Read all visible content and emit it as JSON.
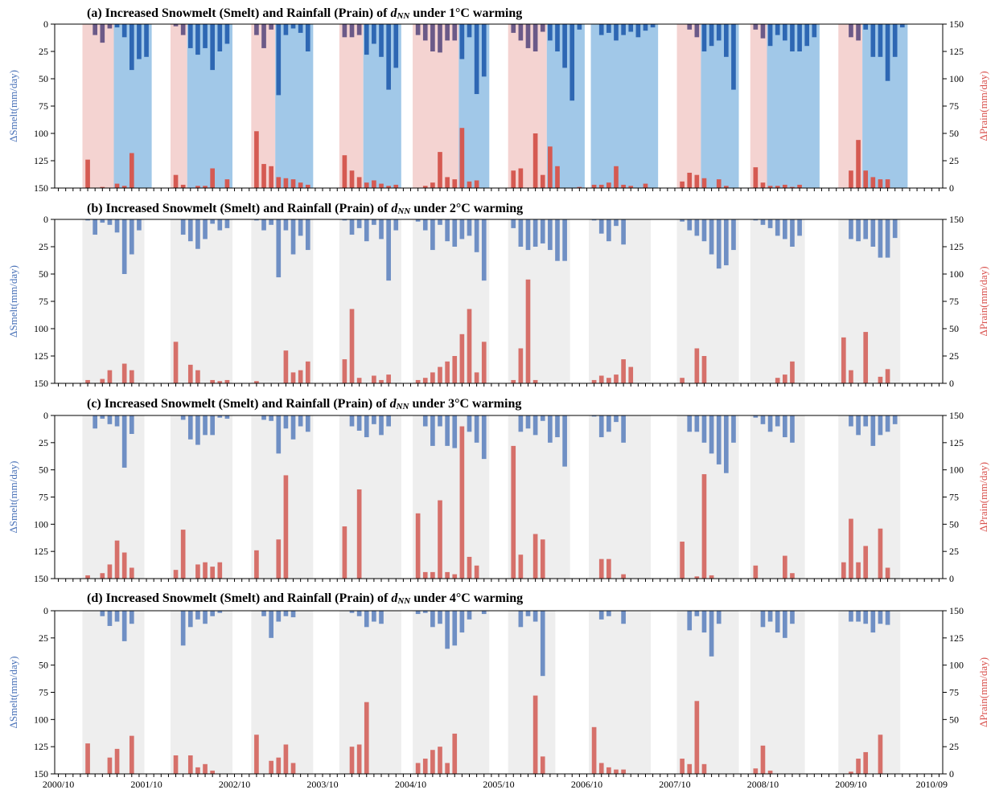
{
  "chart_data": {
    "type": "bar",
    "x_tick_labels": [
      "2000/10",
      "2001/10",
      "2002/10",
      "2003/10",
      "2004/10",
      "2005/10",
      "2006/10",
      "2007/10",
      "2008/10",
      "2009/10",
      "2010/09"
    ],
    "left_axis": {
      "label": "ΔSmelt(mm/day)",
      "ylim": [
        0,
        150
      ],
      "inverted": true,
      "ticks": [
        "0",
        "25",
        "50",
        "75",
        "100",
        "125",
        "150"
      ]
    },
    "right_axis": {
      "label": "ΔPrain(mm/day)",
      "ylim": [
        0,
        150
      ],
      "ticks": [
        "0",
        "25",
        "50",
        "75",
        "100",
        "125",
        "150"
      ]
    },
    "colors": {
      "snow": "#6f8fc4",
      "rain": "#d6706a",
      "panel_a_snow": "#2e67b3",
      "panel_a_rain": "#d55a52",
      "overlap": "#6b5a88",
      "shade_grey": "#eeeeee",
      "shade_red": "#f4d3d1",
      "shade_blue": "#a1c8e8"
    },
    "panels": [
      {
        "title_prefix": "(a) Increased Snowmelt (Smelt) and Rainfall (Prain) of ",
        "title_var": "dNN",
        "title_suffix": " under 1°C warming",
        "seasons": [
          {
            "smelt": [
              0,
              10,
              17,
              4,
              3,
              12,
              42,
              32,
              30
            ],
            "prain": [
              26,
              0,
              1,
              0,
              4,
              2,
              32,
              0,
              0
            ]
          },
          {
            "smelt": [
              2,
              10,
              22,
              28,
              22,
              42,
              25,
              18
            ],
            "prain": [
              12,
              3,
              0,
              2,
              2,
              18,
              0,
              8
            ]
          },
          {
            "smelt": [
              10,
              22,
              5,
              65,
              10,
              4,
              8,
              25
            ],
            "prain": [
              52,
              22,
              20,
              10,
              9,
              8,
              5,
              3
            ]
          },
          {
            "smelt": [
              12,
              12,
              10,
              28,
              18,
              30,
              60,
              40
            ],
            "prain": [
              30,
              16,
              10,
              5,
              7,
              4,
              2,
              3
            ]
          },
          {
            "smelt": [
              10,
              15,
              25,
              26,
              15,
              15,
              32,
              12,
              64,
              48
            ],
            "prain": [
              0,
              2,
              5,
              33,
              10,
              8,
              55,
              6,
              7,
              0
            ]
          },
          {
            "smelt": [
              8,
              15,
              22,
              25,
              7,
              15,
              25,
              40,
              70,
              5
            ],
            "prain": [
              16,
              18,
              0,
              50,
              12,
              38,
              20,
              0,
              0,
              1
            ]
          },
          {
            "smelt": [
              0,
              10,
              8,
              15,
              10,
              7,
              12,
              6,
              3
            ],
            "prain": [
              3,
              3,
              5,
              20,
              3,
              2,
              0,
              4,
              0
            ]
          },
          {
            "smelt": [
              0,
              5,
              12,
              25,
              20,
              15,
              30,
              60
            ],
            "prain": [
              6,
              14,
              12,
              9,
              0,
              8,
              2,
              0
            ]
          },
          {
            "smelt": [
              5,
              13,
              20,
              10,
              15,
              25,
              25,
              20,
              12
            ],
            "prain": [
              19,
              5,
              2,
              2,
              3,
              1,
              3,
              0,
              0
            ]
          },
          {
            "smelt": [
              0,
              12,
              15,
              5,
              30,
              30,
              52,
              30,
              3
            ],
            "prain": [
              0,
              16,
              44,
              16,
              10,
              8,
              8,
              0,
              0
            ]
          }
        ]
      },
      {
        "title_prefix": "(b) Increased Snowmelt (Smelt) and Rainfall (Prain) of ",
        "title_var": "dNN",
        "title_suffix": " under 2°C warming",
        "seasons": [
          {
            "smelt": [
              1,
              14,
              3,
              5,
              12,
              50,
              32,
              10
            ],
            "prain": [
              3,
              0,
              4,
              12,
              0,
              18,
              12,
              0
            ]
          },
          {
            "smelt": [
              0,
              14,
              20,
              27,
              18,
              4,
              10,
              8
            ],
            "prain": [
              38,
              0,
              17,
              12,
              0,
              3,
              2,
              3
            ]
          },
          {
            "smelt": [
              1,
              10,
              5,
              53,
              10,
              32,
              15,
              28
            ],
            "prain": [
              2,
              0,
              0,
              0,
              30,
              10,
              12,
              20
            ]
          },
          {
            "smelt": [
              1,
              14,
              8,
              20,
              5,
              18,
              56,
              10
            ],
            "prain": [
              22,
              68,
              5,
              0,
              7,
              3,
              8,
              0
            ]
          },
          {
            "smelt": [
              2,
              10,
              28,
              5,
              20,
              25,
              18,
              15,
              30,
              56
            ],
            "prain": [
              3,
              5,
              10,
              15,
              20,
              25,
              45,
              68,
              10,
              38
            ]
          },
          {
            "smelt": [
              8,
              25,
              28,
              25,
              22,
              28,
              38,
              38
            ],
            "prain": [
              3,
              32,
              95,
              3,
              0,
              0,
              0,
              0
            ]
          },
          {
            "smelt": [
              1,
              13,
              20,
              6,
              23,
              0,
              0,
              0
            ],
            "prain": [
              3,
              7,
              5,
              8,
              22,
              15,
              0,
              0
            ]
          },
          {
            "smelt": [
              2,
              10,
              15,
              20,
              32,
              45,
              42,
              28
            ],
            "prain": [
              5,
              0,
              32,
              25,
              0,
              0,
              0,
              0
            ]
          },
          {
            "smelt": [
              1,
              5,
              8,
              15,
              18,
              25,
              15
            ],
            "prain": [
              0,
              0,
              0,
              5,
              8,
              20,
              0
            ]
          },
          {
            "smelt": [
              0,
              18,
              20,
              18,
              25,
              35,
              35,
              17
            ],
            "prain": [
              42,
              12,
              0,
              47,
              0,
              6,
              13,
              0
            ]
          }
        ]
      },
      {
        "title_prefix": "(c) Increased Snowmelt (Smelt) and Rainfall (Prain) of ",
        "title_var": "dNN",
        "title_suffix": " under 3°C warming",
        "seasons": [
          {
            "smelt": [
              0,
              12,
              3,
              8,
              10,
              48,
              17,
              0
            ],
            "prain": [
              3,
              0,
              5,
              13,
              35,
              24,
              10,
              0
            ]
          },
          {
            "smelt": [
              0,
              4,
              22,
              27,
              18,
              18,
              2,
              3
            ],
            "prain": [
              8,
              45,
              0,
              13,
              15,
              11,
              15,
              0
            ]
          },
          {
            "smelt": [
              0,
              4,
              5,
              35,
              12,
              22,
              10,
              15
            ],
            "prain": [
              26,
              0,
              0,
              36,
              95,
              0,
              0,
              0
            ]
          },
          {
            "smelt": [
              0,
              10,
              14,
              20,
              8,
              18,
              10,
              0
            ],
            "prain": [
              48,
              0,
              82,
              0,
              0,
              0,
              0,
              0
            ]
          },
          {
            "smelt": [
              0,
              10,
              28,
              10,
              28,
              30,
              0,
              15,
              25,
              40
            ],
            "prain": [
              60,
              6,
              6,
              72,
              6,
              4,
              140,
              20,
              12,
              0
            ]
          },
          {
            "smelt": [
              0,
              15,
              12,
              18,
              5,
              25,
              20,
              47
            ],
            "prain": [
              122,
              22,
              0,
              41,
              36,
              0,
              0,
              0
            ]
          },
          {
            "smelt": [
              1,
              20,
              15,
              6,
              25,
              0,
              0,
              0
            ],
            "prain": [
              0,
              18,
              18,
              0,
              4,
              0,
              0,
              0
            ]
          },
          {
            "smelt": [
              0,
              15,
              15,
              25,
              35,
              45,
              53,
              25
            ],
            "prain": [
              34,
              0,
              2,
              96,
              3,
              0,
              0,
              0
            ]
          },
          {
            "smelt": [
              2,
              8,
              15,
              10,
              20,
              25,
              0
            ],
            "prain": [
              12,
              0,
              0,
              0,
              21,
              5,
              0
            ]
          },
          {
            "smelt": [
              0,
              10,
              18,
              10,
              28,
              18,
              15,
              8
            ],
            "prain": [
              15,
              55,
              15,
              30,
              0,
              46,
              10,
              0
            ]
          }
        ]
      },
      {
        "title_prefix": "(d) Increased Snowmelt (Smelt) and Rainfall (Prain) of ",
        "title_var": "dNN",
        "title_suffix": " under 4°C warming",
        "seasons": [
          {
            "smelt": [
              0,
              0,
              5,
              14,
              10,
              28,
              12,
              0
            ],
            "prain": [
              28,
              0,
              0,
              15,
              23,
              0,
              35,
              0
            ]
          },
          {
            "smelt": [
              0,
              32,
              15,
              8,
              12,
              5,
              2,
              0
            ],
            "prain": [
              17,
              0,
              17,
              6,
              9,
              3,
              0,
              0
            ]
          },
          {
            "smelt": [
              0,
              5,
              25,
              10,
              5,
              6,
              0,
              0
            ],
            "prain": [
              36,
              0,
              12,
              15,
              27,
              10,
              0,
              0
            ]
          },
          {
            "smelt": [
              0,
              2,
              5,
              15,
              10,
              12,
              0,
              0
            ],
            "prain": [
              0,
              25,
              27,
              66,
              0,
              0,
              0,
              0
            ]
          },
          {
            "smelt": [
              3,
              2,
              15,
              12,
              35,
              32,
              20,
              8,
              0,
              3
            ],
            "prain": [
              10,
              14,
              22,
              25,
              10,
              37,
              0,
              0,
              0,
              0
            ]
          },
          {
            "smelt": [
              0,
              15,
              5,
              10,
              60,
              0
            ],
            "prain": [
              0,
              0,
              0,
              72,
              16,
              0
            ]
          },
          {
            "smelt": [
              0,
              8,
              5,
              0,
              12,
              0,
              0,
              0
            ],
            "prain": [
              43,
              10,
              6,
              4,
              4,
              0,
              0,
              0
            ]
          },
          {
            "smelt": [
              0,
              18,
              5,
              20,
              42,
              12,
              0,
              0
            ],
            "prain": [
              14,
              9,
              67,
              9,
              0,
              0,
              0,
              0
            ]
          },
          {
            "smelt": [
              0,
              15,
              10,
              20,
              25,
              12,
              0
            ],
            "prain": [
              5,
              26,
              3,
              0,
              0,
              0,
              0
            ]
          },
          {
            "smelt": [
              0,
              10,
              10,
              12,
              20,
              12,
              13,
              0
            ],
            "prain": [
              0,
              2,
              14,
              20,
              0,
              36,
              0,
              0
            ]
          }
        ]
      }
    ]
  }
}
